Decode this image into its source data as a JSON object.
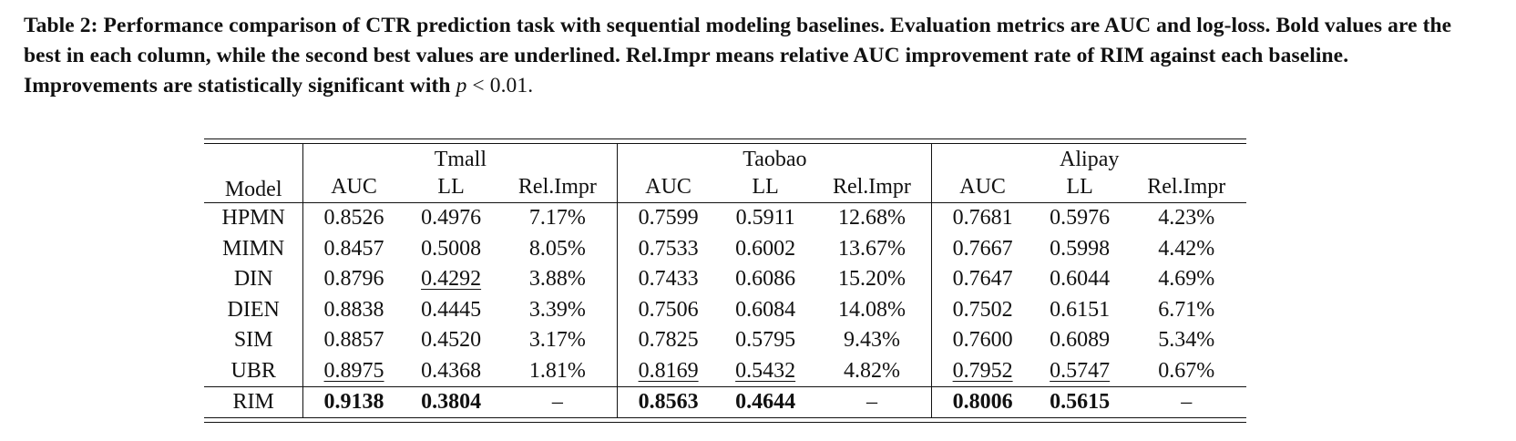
{
  "caption": {
    "text": "Table 2: Performance comparison of CTR prediction task with sequential modeling baselines. Evaluation metrics are AUC and log-loss. Bold values are the best in each column, while the second best values are underlined. Rel.Impr means relative AUC improvement rate of RIM against each baseline. Improvements are statistically significant with",
    "p_symbol": "p",
    "p_condition": " < 0.01."
  },
  "table": {
    "model_header": "Model",
    "groups": [
      "Tmall",
      "Taobao",
      "Alipay"
    ],
    "sub_headers": [
      "AUC",
      "LL",
      "Rel.Impr"
    ],
    "rows": [
      {
        "model": "HPMN",
        "cells": [
          "0.8526",
          "0.4976",
          "7.17%",
          "0.7599",
          "0.5911",
          "12.68%",
          "0.7681",
          "0.5976",
          "4.23%"
        ]
      },
      {
        "model": "MIMN",
        "cells": [
          "0.8457",
          "0.5008",
          "8.05%",
          "0.7533",
          "0.6002",
          "13.67%",
          "0.7667",
          "0.5998",
          "4.42%"
        ]
      },
      {
        "model": "DIN",
        "cells": [
          "0.8796",
          "0.4292",
          "3.88%",
          "0.7433",
          "0.6086",
          "15.20%",
          "0.7647",
          "0.6044",
          "4.69%"
        ]
      },
      {
        "model": "DIEN",
        "cells": [
          "0.8838",
          "0.4445",
          "3.39%",
          "0.7506",
          "0.6084",
          "14.08%",
          "0.7502",
          "0.6151",
          "6.71%"
        ]
      },
      {
        "model": "SIM",
        "cells": [
          "0.8857",
          "0.4520",
          "3.17%",
          "0.7825",
          "0.5795",
          "9.43%",
          "0.7600",
          "0.6089",
          "5.34%"
        ]
      },
      {
        "model": "UBR",
        "cells": [
          "0.8975",
          "0.4368",
          "1.81%",
          "0.8169",
          "0.5432",
          "4.82%",
          "0.7952",
          "0.5747",
          "0.67%"
        ]
      }
    ],
    "best_row": {
      "model": "RIM",
      "cells": [
        "0.9138",
        "0.3804",
        "–",
        "0.8563",
        "0.4644",
        "–",
        "0.8006",
        "0.5615",
        "–"
      ]
    }
  }
}
